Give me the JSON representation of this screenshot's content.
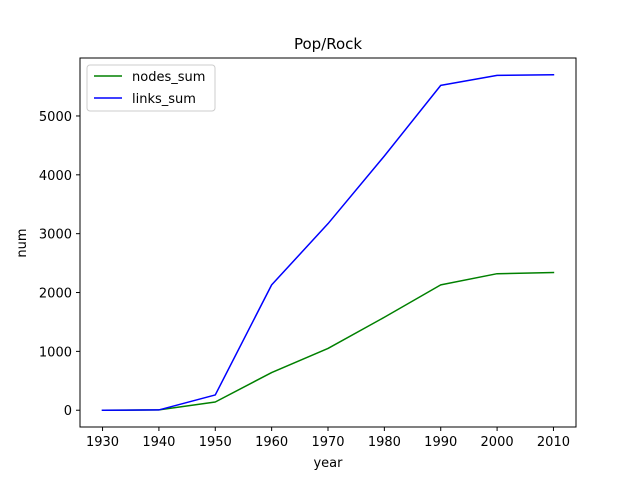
{
  "chart_data": {
    "type": "line",
    "title": "Pop/Rock",
    "xlabel": "year",
    "ylabel": "num",
    "x": [
      1930,
      1940,
      1950,
      1960,
      1970,
      1980,
      1990,
      2000,
      2010
    ],
    "xlim": [
      1926.0,
      2014.0
    ],
    "ylim": [
      -285,
      5985
    ],
    "xticks": [
      1930,
      1940,
      1950,
      1960,
      1970,
      1980,
      1990,
      2000,
      2010
    ],
    "yticks": [
      0,
      1000,
      2000,
      3000,
      4000,
      5000
    ],
    "grid": false,
    "legend_position": "top-left",
    "series": [
      {
        "name": "nodes_sum",
        "color": "#008000",
        "values": [
          0,
          5,
          140,
          640,
          1050,
          1580,
          2130,
          2320,
          2340
        ]
      },
      {
        "name": "links_sum",
        "color": "#0000ff",
        "values": [
          0,
          5,
          260,
          2130,
          3170,
          4320,
          5520,
          5690,
          5700
        ]
      }
    ]
  }
}
